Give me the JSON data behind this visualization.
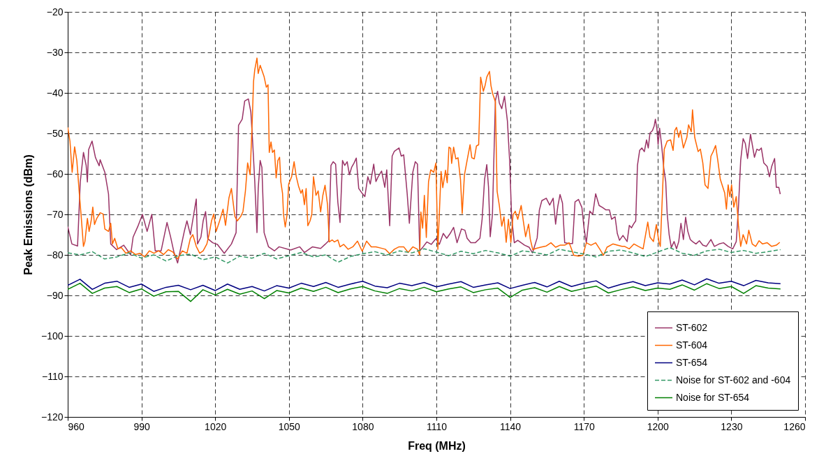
{
  "chart_data": {
    "type": "line",
    "xlabel": "Freq (MHz)",
    "ylabel": "Peak Emissions (dBm)",
    "xlim": [
      960,
      1260
    ],
    "xticks": [
      960,
      990,
      1020,
      1050,
      1080,
      1110,
      1140,
      1170,
      1200,
      1230,
      1260
    ],
    "ylim": [
      -120,
      -20
    ],
    "yticks": [
      -120,
      -110,
      -100,
      -90,
      -80,
      -70,
      -60,
      -50,
      -40,
      -30,
      -20
    ],
    "grid": true,
    "legend": "bottom right",
    "series": [
      {
        "name": "ST-602",
        "color": "#993366",
        "line_style": "solid",
        "x": [
          960,
          961.7,
          964,
          965.1,
          966.4,
          967.5,
          968,
          968.5,
          969.9,
          971.3,
          972.8,
          973.2,
          975.1,
          976.6,
          977.5,
          979.9,
          982.8,
          985.6,
          986.6,
          988.5,
          990.4,
          992.3,
          994.2,
          995.6,
          998,
          1000.4,
          1001.8,
          1003.2,
          1004.7,
          1007.5,
          1008.5,
          1009.9,
          1012.3,
          1012.8,
          1014.2,
          1015.1,
          1016.1,
          1017,
          1019,
          1020.9,
          1023.7,
          1026.6,
          1028.5,
          1029.5,
          1031,
          1032,
          1033.5,
          1034.5,
          1035.2,
          1036.1,
          1037,
          1037.5,
          1038.3,
          1039,
          1039.9,
          1040.5,
          1041.7,
          1044.1,
          1046,
          1050.7,
          1054.4,
          1056.3,
          1059.6,
          1062.9,
          1064.7,
          1066.2,
          1067.1,
          1068,
          1069,
          1069.9,
          1070.8,
          1071.8,
          1072.7,
          1073.7,
          1074.6,
          1075.5,
          1076.5,
          1077.4,
          1078.4,
          1079.8,
          1080.9,
          1082.1,
          1083.1,
          1084.5,
          1085.4,
          1086.3,
          1087.7,
          1089,
          1089.8,
          1091,
          1092,
          1092.9,
          1094.8,
          1095.7,
          1096.7,
          1098.1,
          1099,
          1100.4,
          1101.4,
          1102.3,
          1103.2,
          1104.6,
          1106.1,
          1107.9,
          1109.8,
          1111.2,
          1112.8,
          1114.2,
          1115.6,
          1117,
          1118.4,
          1120.2,
          1121.6,
          1122.5,
          1124,
          1125.8,
          1127.7,
          1128.6,
          1129.6,
          1130.5,
          1131.2,
          1131.9,
          1132.8,
          1134,
          1134.9,
          1135.6,
          1136.6,
          1137.7,
          1138.9,
          1139.8,
          1140.6,
          1141.7,
          1143.1,
          1144.5,
          1145.9,
          1147.7,
          1149.1,
          1151,
          1151.9,
          1152.9,
          1154.7,
          1156.1,
          1157.5,
          1158.5,
          1159.4,
          1160.3,
          1161.3,
          1162.2,
          1164,
          1165.4,
          1166.4,
          1167.8,
          1169.2,
          1170.1,
          1171,
          1172.4,
          1173.6,
          1174.8,
          1176.2,
          1177.6,
          1179,
          1180.4,
          1181.3,
          1182.7,
          1183.6,
          1184.5,
          1185.9,
          1187.6,
          1188.5,
          1189.4,
          1190.2,
          1191.1,
          1191.8,
          1192.7,
          1193.6,
          1194.6,
          1195.5,
          1196.2,
          1196.9,
          1197.9,
          1198.6,
          1199.1,
          1199.7,
          1200.2,
          1200.8,
          1201.6,
          1202.5,
          1203.3,
          1203.9,
          1204.7,
          1205.6,
          1206.7,
          1207.7,
          1208.6,
          1209.5,
          1210.5,
          1211.4,
          1212.3,
          1213.3,
          1214.2,
          1215.6,
          1217,
          1218.4,
          1219.8,
          1221.7,
          1223.1,
          1225,
          1226.8,
          1228.7,
          1230.6,
          1232,
          1232.9,
          1233.8,
          1234.8,
          1235.7,
          1236.6,
          1237.8,
          1238.5,
          1239.4,
          1240.4,
          1241.3,
          1242.2,
          1243.2,
          1244.6,
          1245.5,
          1246.4,
          1247.6,
          1248.3,
          1249.3,
          1249.9
        ],
        "values": [
          -73,
          -77.3,
          -77.8,
          -62,
          -54.7,
          -57.9,
          -62,
          -54,
          -51.9,
          -56,
          -58,
          -56.5,
          -59.6,
          -65,
          -77.3,
          -78.7,
          -77.6,
          -80,
          -75.6,
          -73,
          -70,
          -74.2,
          -70,
          -79,
          -79,
          -72,
          -75.4,
          -79.3,
          -82,
          -74,
          -71.6,
          -75,
          -66.2,
          -77.3,
          -75.6,
          -71.6,
          -69.3,
          -76,
          -77,
          -77.4,
          -79.6,
          -77.3,
          -74.5,
          -48,
          -46.5,
          -42,
          -41.5,
          -44.7,
          -51.6,
          -61.9,
          -74.5,
          -63.6,
          -56.7,
          -58.4,
          -74.5,
          -75.7,
          -78,
          -79,
          -78,
          -78.8,
          -78,
          -79.4,
          -78,
          -78.4,
          -77.4,
          -76.5,
          -57.9,
          -57,
          -57.6,
          -67,
          -72,
          -56.7,
          -57.9,
          -57,
          -60.2,
          -58.4,
          -57.3,
          -56.1,
          -63.6,
          -64.8,
          -65.6,
          -60.7,
          -62.5,
          -57.6,
          -61.9,
          -60.7,
          -59.3,
          -63.3,
          -59,
          -72.8,
          -55.6,
          -54.4,
          -53.6,
          -55.6,
          -55.3,
          -64.8,
          -72.2,
          -59.6,
          -57,
          -57.6,
          -79,
          -78,
          -76.8,
          -77.4,
          -76,
          -77.4,
          -74.7,
          -75.9,
          -74.7,
          -73.2,
          -77,
          -73.6,
          -73.9,
          -75.9,
          -77,
          -77,
          -75.9,
          -71.2,
          -61.4,
          -57.7,
          -63.2,
          -75.5,
          -70,
          -41.9,
          -39.6,
          -42.5,
          -43.9,
          -40.8,
          -47,
          -56.8,
          -70.6,
          -77,
          -76.4,
          -77,
          -77.6,
          -78.1,
          -79.5,
          -75.8,
          -68.9,
          -66.6,
          -66,
          -67.7,
          -66,
          -72.4,
          -68,
          -65.1,
          -67.2,
          -77,
          -77.2,
          -77.2,
          -66.9,
          -66.3,
          -68.3,
          -73.5,
          -77,
          -69.2,
          -70,
          -64.9,
          -67.8,
          -68.3,
          -68.9,
          -68.9,
          -71.2,
          -70.6,
          -74.7,
          -76.4,
          -75.2,
          -76.7,
          -72.7,
          -73.3,
          -72.4,
          -71.6,
          -57.9,
          -54.2,
          -53.6,
          -54.5,
          -51.6,
          -53.6,
          -49.9,
          -49.3,
          -48.2,
          -46.5,
          -48.8,
          -52.7,
          -48.7,
          -52.7,
          -58.5,
          -61.9,
          -69.9,
          -75,
          -78.2,
          -76.7,
          -78.5,
          -76.7,
          -72.2,
          -76.2,
          -70.7,
          -74.2,
          -76.2,
          -76.7,
          -77.3,
          -76.5,
          -77.6,
          -77.9,
          -76.2,
          -77.9,
          -77.3,
          -77,
          -77.9,
          -78.5,
          -76.7,
          -68.2,
          -56.7,
          -51.3,
          -52.5,
          -56.2,
          -50.2,
          -52.7,
          -55.9,
          -53.9,
          -54.2,
          -53.6,
          -57.3,
          -58.2,
          -60.7,
          -58.2,
          -56.2,
          -63.3,
          -63.3,
          -65
        ]
      },
      {
        "name": "ST-604",
        "color": "#ff6600",
        "line_style": "solid",
        "x": [
          960,
          960.9,
          961.8,
          962.8,
          963.7,
          964.7,
          965.4,
          966.4,
          967,
          968,
          968.7,
          969.6,
          970.2,
          970.9,
          971.8,
          973.2,
          974.4,
          975.1,
          976.6,
          977.5,
          978.2,
          979.1,
          980.4,
          981.8,
          983.7,
          985.6,
          987.5,
          989.4,
          991.3,
          993.2,
          995.1,
          997,
          999,
          1000.9,
          1002.8,
          1004.7,
          1006.6,
          1008.5,
          1009.9,
          1010.9,
          1012.3,
          1013.7,
          1015.1,
          1016.6,
          1017.5,
          1018.5,
          1019.4,
          1020.4,
          1021.8,
          1023.2,
          1024.2,
          1025.6,
          1026.6,
          1028,
          1029,
          1030.4,
          1031.3,
          1032.3,
          1033.2,
          1034.2,
          1035.1,
          1035.6,
          1036.1,
          1037,
          1037.5,
          1038.3,
          1039.9,
          1040.8,
          1041.5,
          1042,
          1042.7,
          1043.3,
          1044.1,
          1044.8,
          1045.5,
          1046.2,
          1046.7,
          1047.4,
          1047.8,
          1048.5,
          1049.2,
          1049.9,
          1051.1,
          1052.1,
          1053,
          1053.9,
          1054.9,
          1055.5,
          1056.3,
          1057,
          1057.7,
          1058.6,
          1059.3,
          1060,
          1061,
          1061.9,
          1062.9,
          1063.8,
          1064.7,
          1065.7,
          1066.4,
          1067.6,
          1068.5,
          1069.9,
          1070.8,
          1072.3,
          1074.1,
          1076,
          1077.9,
          1079.8,
          1081.6,
          1083.5,
          1085.4,
          1087.3,
          1089.2,
          1091,
          1092.9,
          1094.8,
          1096.7,
          1098.5,
          1100.4,
          1102.3,
          1103.2,
          1103.7,
          1104.4,
          1105.1,
          1105.9,
          1106.8,
          1107.7,
          1108.9,
          1109.8,
          1110.6,
          1111.9,
          1112.6,
          1113.7,
          1114.4,
          1115.1,
          1115.8,
          1116.2,
          1117,
          1117.9,
          1118.8,
          1119.8,
          1120.5,
          1121.4,
          1122.6,
          1123.7,
          1124.4,
          1125.4,
          1126.3,
          1127.2,
          1128,
          1129.1,
          1129.8,
          1130.5,
          1131.6,
          1132.2,
          1132.9,
          1134,
          1134.7,
          1135.6,
          1136.6,
          1137.5,
          1138.4,
          1139.3,
          1140.3,
          1141.2,
          1142.1,
          1143.1,
          1144.5,
          1145.4,
          1146.3,
          1147.5,
          1148.2,
          1149.2,
          1150.5,
          1152.4,
          1154.7,
          1156.6,
          1158.5,
          1160.3,
          1162.2,
          1164,
          1165.9,
          1167.8,
          1169.6,
          1171,
          1172.9,
          1174.8,
          1176.6,
          1178,
          1179.4,
          1181.8,
          1183.6,
          1185.5,
          1186.6,
          1188.5,
          1190.4,
          1192.2,
          1194.1,
          1196,
          1196.9,
          1198.3,
          1199.5,
          1200.5,
          1201.1,
          1202.1,
          1202.7,
          1203.9,
          1205.3,
          1206.3,
          1207,
          1207.7,
          1208.6,
          1209.3,
          1210.5,
          1211.9,
          1212.6,
          1213.7,
          1214.2,
          1215.1,
          1216.5,
          1217.4,
          1218.4,
          1219.3,
          1220.5,
          1221.7,
          1222.6,
          1223.6,
          1224.5,
          1225.5,
          1226.4,
          1227.3,
          1228,
          1228.7,
          1229.4,
          1230.1,
          1231,
          1232,
          1232.9,
          1233.8,
          1234.8,
          1236.2,
          1237.1,
          1238.5,
          1239.9,
          1241.3,
          1242.7,
          1244.6,
          1246.4,
          1248.3,
          1249.7
        ],
        "values": [
          -48.5,
          -51.9,
          -59.6,
          -53.3,
          -56.7,
          -64.7,
          -69.9,
          -77.9,
          -76.7,
          -71,
          -74.2,
          -71.3,
          -68.2,
          -72.5,
          -71,
          -69.6,
          -69.9,
          -73.6,
          -74.2,
          -72.2,
          -77.3,
          -75.9,
          -78.5,
          -78.2,
          -79.6,
          -79,
          -79.9,
          -79.6,
          -80.5,
          -79,
          -79.6,
          -79,
          -79.9,
          -78.7,
          -79.3,
          -81,
          -79,
          -79.6,
          -75.9,
          -75,
          -77.9,
          -79.6,
          -79,
          -77.3,
          -75,
          -71.6,
          -69.9,
          -74.2,
          -71.6,
          -68.7,
          -72.7,
          -65.9,
          -63.6,
          -70.5,
          -71.6,
          -70.5,
          -69.3,
          -64.2,
          -57.3,
          -60.2,
          -46.5,
          -37.2,
          -34.3,
          -31.4,
          -35.2,
          -33.2,
          -36,
          -38.6,
          -38,
          -54.7,
          -52.1,
          -54.7,
          -54.1,
          -61,
          -56.7,
          -55.9,
          -61.9,
          -64.8,
          -70,
          -73.1,
          -70.2,
          -62.5,
          -60.7,
          -57,
          -60.7,
          -63,
          -64.8,
          -63.9,
          -67.6,
          -63.6,
          -72.8,
          -71.6,
          -70,
          -60.7,
          -65.3,
          -64.2,
          -69.4,
          -65.3,
          -62.8,
          -67.6,
          -76.8,
          -76.3,
          -76.8,
          -76.3,
          -78,
          -77.4,
          -78.6,
          -78,
          -76.6,
          -79.1,
          -76.6,
          -78,
          -78,
          -78.3,
          -78.6,
          -79.7,
          -78.6,
          -78,
          -78,
          -79.4,
          -78,
          -78.6,
          -80,
          -69.4,
          -73.4,
          -65.3,
          -75.7,
          -61.9,
          -59,
          -59.6,
          -57.3,
          -78.6,
          -59.4,
          -63.4,
          -59.1,
          -62.2,
          -53.4,
          -53.7,
          -57.4,
          -53.4,
          -56.3,
          -56,
          -61.4,
          -69.8,
          -60.3,
          -56.3,
          -52.8,
          -56,
          -56.3,
          -53.1,
          -52.8,
          -36.1,
          -39.6,
          -38.2,
          -36.1,
          -34.7,
          -38.2,
          -40.2,
          -42.2,
          -64.3,
          -67.8,
          -72.9,
          -70.6,
          -76.9,
          -71.2,
          -76.9,
          -70.1,
          -69.2,
          -71.2,
          -67.8,
          -71.8,
          -75.5,
          -72.4,
          -76.1,
          -78.7,
          -78.4,
          -78.1,
          -77.8,
          -77,
          -78.1,
          -77.6,
          -77.6,
          -77,
          -80.1,
          -80.3,
          -80.1,
          -77,
          -77.6,
          -77,
          -78.7,
          -80.1,
          -78.1,
          -77.3,
          -77.6,
          -77.9,
          -77.9,
          -78.5,
          -77.3,
          -77.9,
          -78.5,
          -71.9,
          -75.6,
          -76.7,
          -72.5,
          -76.7,
          -77.9,
          -63,
          -53.9,
          -51.9,
          -51.6,
          -54.2,
          -49.3,
          -48.5,
          -51,
          -49.3,
          -53.6,
          -51,
          -47.9,
          -49.6,
          -44.2,
          -51,
          -54.5,
          -53.9,
          -57.3,
          -62.7,
          -63.6,
          -55.6,
          -54.5,
          -53,
          -56.7,
          -61.3,
          -63,
          -64.7,
          -68.7,
          -62.7,
          -65.6,
          -62.7,
          -68.2,
          -65.6,
          -72.7,
          -77.9,
          -75,
          -77.3,
          -73.9,
          -77.3,
          -77.9,
          -76.5,
          -77.3,
          -77,
          -77.9,
          -77.6,
          -76.9
        ]
      },
      {
        "name": "ST-654",
        "color": "#000080",
        "line_style": "solid",
        "x": [
          960,
          965,
          970,
          975,
          980,
          985,
          990,
          995,
          1000,
          1005,
          1010,
          1015,
          1020,
          1025,
          1030,
          1035,
          1040,
          1045,
          1050,
          1055,
          1060,
          1065,
          1070,
          1075,
          1080,
          1085,
          1090,
          1095,
          1100,
          1105,
          1110,
          1115,
          1120,
          1125,
          1130,
          1135,
          1140,
          1145,
          1150,
          1155,
          1160,
          1165,
          1170,
          1175,
          1180,
          1185,
          1190,
          1195,
          1200,
          1205,
          1210,
          1215,
          1220,
          1225,
          1230,
          1235,
          1240,
          1245,
          1250
        ],
        "values": [
          -87.5,
          -86,
          -88.5,
          -87,
          -86.5,
          -88,
          -87.2,
          -89,
          -88,
          -87.5,
          -88.6,
          -87.5,
          -88.8,
          -87.2,
          -88.5,
          -87.8,
          -88.9,
          -87.6,
          -88.2,
          -87,
          -87.8,
          -86.8,
          -88,
          -87.2,
          -86.5,
          -87.7,
          -88.1,
          -87,
          -87.6,
          -86.8,
          -87.9,
          -87.2,
          -86.6,
          -88,
          -87.4,
          -86.9,
          -88.3,
          -87.5,
          -86.8,
          -87.9,
          -86.5,
          -87.8,
          -87,
          -86.4,
          -88.2,
          -87.3,
          -86.6,
          -87.6,
          -86.9,
          -87.2,
          -86.2,
          -87.4,
          -85.9,
          -87,
          -86.5,
          -87.6,
          -86.3,
          -86.9,
          -87.1
        ]
      },
      {
        "name": "Noise for ST-602 and -604",
        "color": "#339966",
        "line_style": "dashed",
        "x": [
          960,
          965,
          970,
          975,
          980,
          985,
          990,
          995,
          1000,
          1005,
          1010,
          1015,
          1020,
          1025,
          1030,
          1035,
          1040,
          1045,
          1050,
          1055,
          1060,
          1065,
          1070,
          1075,
          1080,
          1085,
          1090,
          1095,
          1100,
          1105,
          1110,
          1115,
          1120,
          1125,
          1130,
          1135,
          1140,
          1145,
          1150,
          1155,
          1160,
          1165,
          1170,
          1175,
          1180,
          1185,
          1190,
          1195,
          1200,
          1205,
          1210,
          1215,
          1220,
          1225,
          1230,
          1235,
          1240,
          1245,
          1250
        ],
        "values": [
          -79.5,
          -80,
          -79.2,
          -81,
          -80.5,
          -79.5,
          -80.8,
          -80,
          -81.5,
          -80.2,
          -79.8,
          -81.2,
          -80.5,
          -82,
          -80.3,
          -80.8,
          -79.6,
          -81,
          -80.2,
          -79.4,
          -80.5,
          -80,
          -81.8,
          -80.4,
          -79.7,
          -79.2,
          -80,
          -79,
          -79.5,
          -78.5,
          -79.3,
          -80.2,
          -79.1,
          -79.7,
          -78.9,
          -79.5,
          -80.3,
          -79,
          -79.4,
          -80,
          -78.6,
          -79.2,
          -79.8,
          -80.5,
          -79.1,
          -78.8,
          -79.5,
          -80.4,
          -79.3,
          -78.2,
          -79.6,
          -80.1,
          -79,
          -78.6,
          -79.4,
          -78.9,
          -79.6,
          -79.2,
          -78.7
        ]
      },
      {
        "name": "Noise for ST-654",
        "color": "#008000",
        "line_style": "solid",
        "x": [
          960,
          965,
          970,
          975,
          980,
          985,
          990,
          995,
          1000,
          1005,
          1010,
          1015,
          1020,
          1025,
          1030,
          1035,
          1040,
          1045,
          1050,
          1055,
          1060,
          1065,
          1070,
          1075,
          1080,
          1085,
          1090,
          1095,
          1100,
          1105,
          1110,
          1115,
          1120,
          1125,
          1130,
          1135,
          1140,
          1145,
          1150,
          1155,
          1160,
          1165,
          1170,
          1175,
          1180,
          1185,
          1190,
          1195,
          1200,
          1205,
          1210,
          1215,
          1220,
          1225,
          1230,
          1235,
          1240,
          1245,
          1250
        ],
        "values": [
          -88.5,
          -87,
          -89.5,
          -88.2,
          -87.8,
          -89.3,
          -88.4,
          -90.2,
          -89.1,
          -89,
          -91.5,
          -88.6,
          -89.9,
          -88.5,
          -89.7,
          -88.9,
          -90.8,
          -88.8,
          -89.4,
          -88.2,
          -89,
          -88,
          -89.3,
          -88.4,
          -87.8,
          -88.9,
          -89.5,
          -88.3,
          -88.9,
          -88,
          -89.1,
          -88.4,
          -87.9,
          -89.3,
          -88.6,
          -88.2,
          -90.5,
          -88.7,
          -88.1,
          -89.2,
          -87.8,
          -89,
          -88.3,
          -87.7,
          -89.4,
          -88.6,
          -87.9,
          -88.8,
          -88.2,
          -88.5,
          -87.4,
          -88.7,
          -87.1,
          -88.3,
          -87.8,
          -89.5,
          -87.6,
          -88.2,
          -88.4
        ]
      }
    ]
  }
}
